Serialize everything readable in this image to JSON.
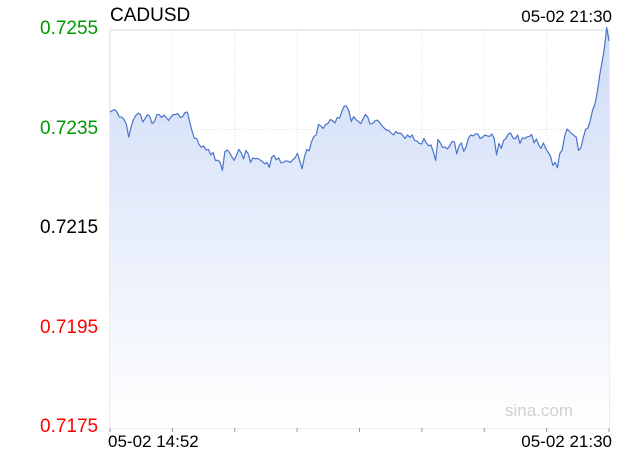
{
  "chart_data": {
    "type": "area",
    "title": "CADUSD",
    "timestamp": "05-02 21:30",
    "x_tick_labels": [
      "05-02 14:52",
      "05-02 21:30"
    ],
    "y_tick_labels": [
      "0.7255",
      "0.7235",
      "0.7215",
      "0.7195",
      "0.7175"
    ],
    "ylim": [
      0.7175,
      0.7255
    ],
    "reference_value": 0.7215,
    "grid": true,
    "watermark": "sina.com",
    "colors": {
      "line": "#4a74c9",
      "fill_top": "#cfdcf7",
      "fill_bottom": "#ffffff",
      "up": "#009900",
      "down": "#ff0000",
      "neutral": "#000000",
      "grid": "#dddddd",
      "reference_line": "#a0a0c0"
    },
    "series": [
      {
        "values": [
          0.72385,
          0.72388,
          0.7239,
          0.72385,
          0.72375,
          0.72375,
          0.7237,
          0.7236,
          0.72335,
          0.72355,
          0.7237,
          0.72378,
          0.72383,
          0.7238,
          0.72365,
          0.72372,
          0.7238,
          0.72376,
          0.72362,
          0.72366,
          0.7238,
          0.7238,
          0.72374,
          0.72379,
          0.72374,
          0.72368,
          0.72375,
          0.7238,
          0.7238,
          0.72382,
          0.72374,
          0.72376,
          0.72384,
          0.72385,
          0.72366,
          0.72347,
          0.72332,
          0.72332,
          0.7232,
          0.72314,
          0.72317,
          0.72309,
          0.7231,
          0.72299,
          0.72304,
          0.72288,
          0.72288,
          0.72284,
          0.72268,
          0.72305,
          0.72309,
          0.72304,
          0.72295,
          0.72288,
          0.72298,
          0.7231,
          0.72303,
          0.72291,
          0.72308,
          0.72301,
          0.72284,
          0.72293,
          0.72291,
          0.72292,
          0.72289,
          0.72286,
          0.72281,
          0.72284,
          0.72274,
          0.72294,
          0.72298,
          0.72289,
          0.72293,
          0.72283,
          0.72284,
          0.72287,
          0.72286,
          0.72284,
          0.72289,
          0.72293,
          0.72302,
          0.72287,
          0.72271,
          0.72295,
          0.7231,
          0.72307,
          0.72325,
          0.72336,
          0.72339,
          0.7236,
          0.72357,
          0.72352,
          0.7236,
          0.72362,
          0.7237,
          0.72368,
          0.72363,
          0.72374,
          0.72373,
          0.72387,
          0.72397,
          0.72397,
          0.72387,
          0.72366,
          0.72376,
          0.7237,
          0.72366,
          0.72362,
          0.72371,
          0.7238,
          0.72375,
          0.72361,
          0.72362,
          0.72367,
          0.72369,
          0.72365,
          0.72358,
          0.72353,
          0.72349,
          0.72348,
          0.72343,
          0.72339,
          0.72346,
          0.72342,
          0.72343,
          0.72338,
          0.72332,
          0.72339,
          0.72334,
          0.72339,
          0.72328,
          0.72327,
          0.72322,
          0.72321,
          0.72332,
          0.72323,
          0.72317,
          0.72319,
          0.72305,
          0.72288,
          0.7233,
          0.72323,
          0.72314,
          0.72315,
          0.72311,
          0.72317,
          0.72326,
          0.72325,
          0.72301,
          0.72317,
          0.72323,
          0.72306,
          0.72315,
          0.72333,
          0.72339,
          0.72337,
          0.72341,
          0.72341,
          0.72332,
          0.72334,
          0.72339,
          0.72337,
          0.72336,
          0.72341,
          0.72332,
          0.72299,
          0.72322,
          0.72312,
          0.72328,
          0.72332,
          0.72341,
          0.72343,
          0.72333,
          0.72331,
          0.72339,
          0.72322,
          0.72333,
          0.72332,
          0.72335,
          0.72336,
          0.7234,
          0.72323,
          0.72331,
          0.72319,
          0.72312,
          0.72323,
          0.72312,
          0.72304,
          0.72297,
          0.72278,
          0.72284,
          0.72273,
          0.72302,
          0.72308,
          0.72335,
          0.72351,
          0.72347,
          0.72342,
          0.72338,
          0.72335,
          0.72308,
          0.72313,
          0.72333,
          0.7235,
          0.72353,
          0.72368,
          0.72389,
          0.72401,
          0.72425,
          0.72458,
          0.72485,
          0.72512,
          0.72555,
          0.72528
        ]
      }
    ]
  }
}
